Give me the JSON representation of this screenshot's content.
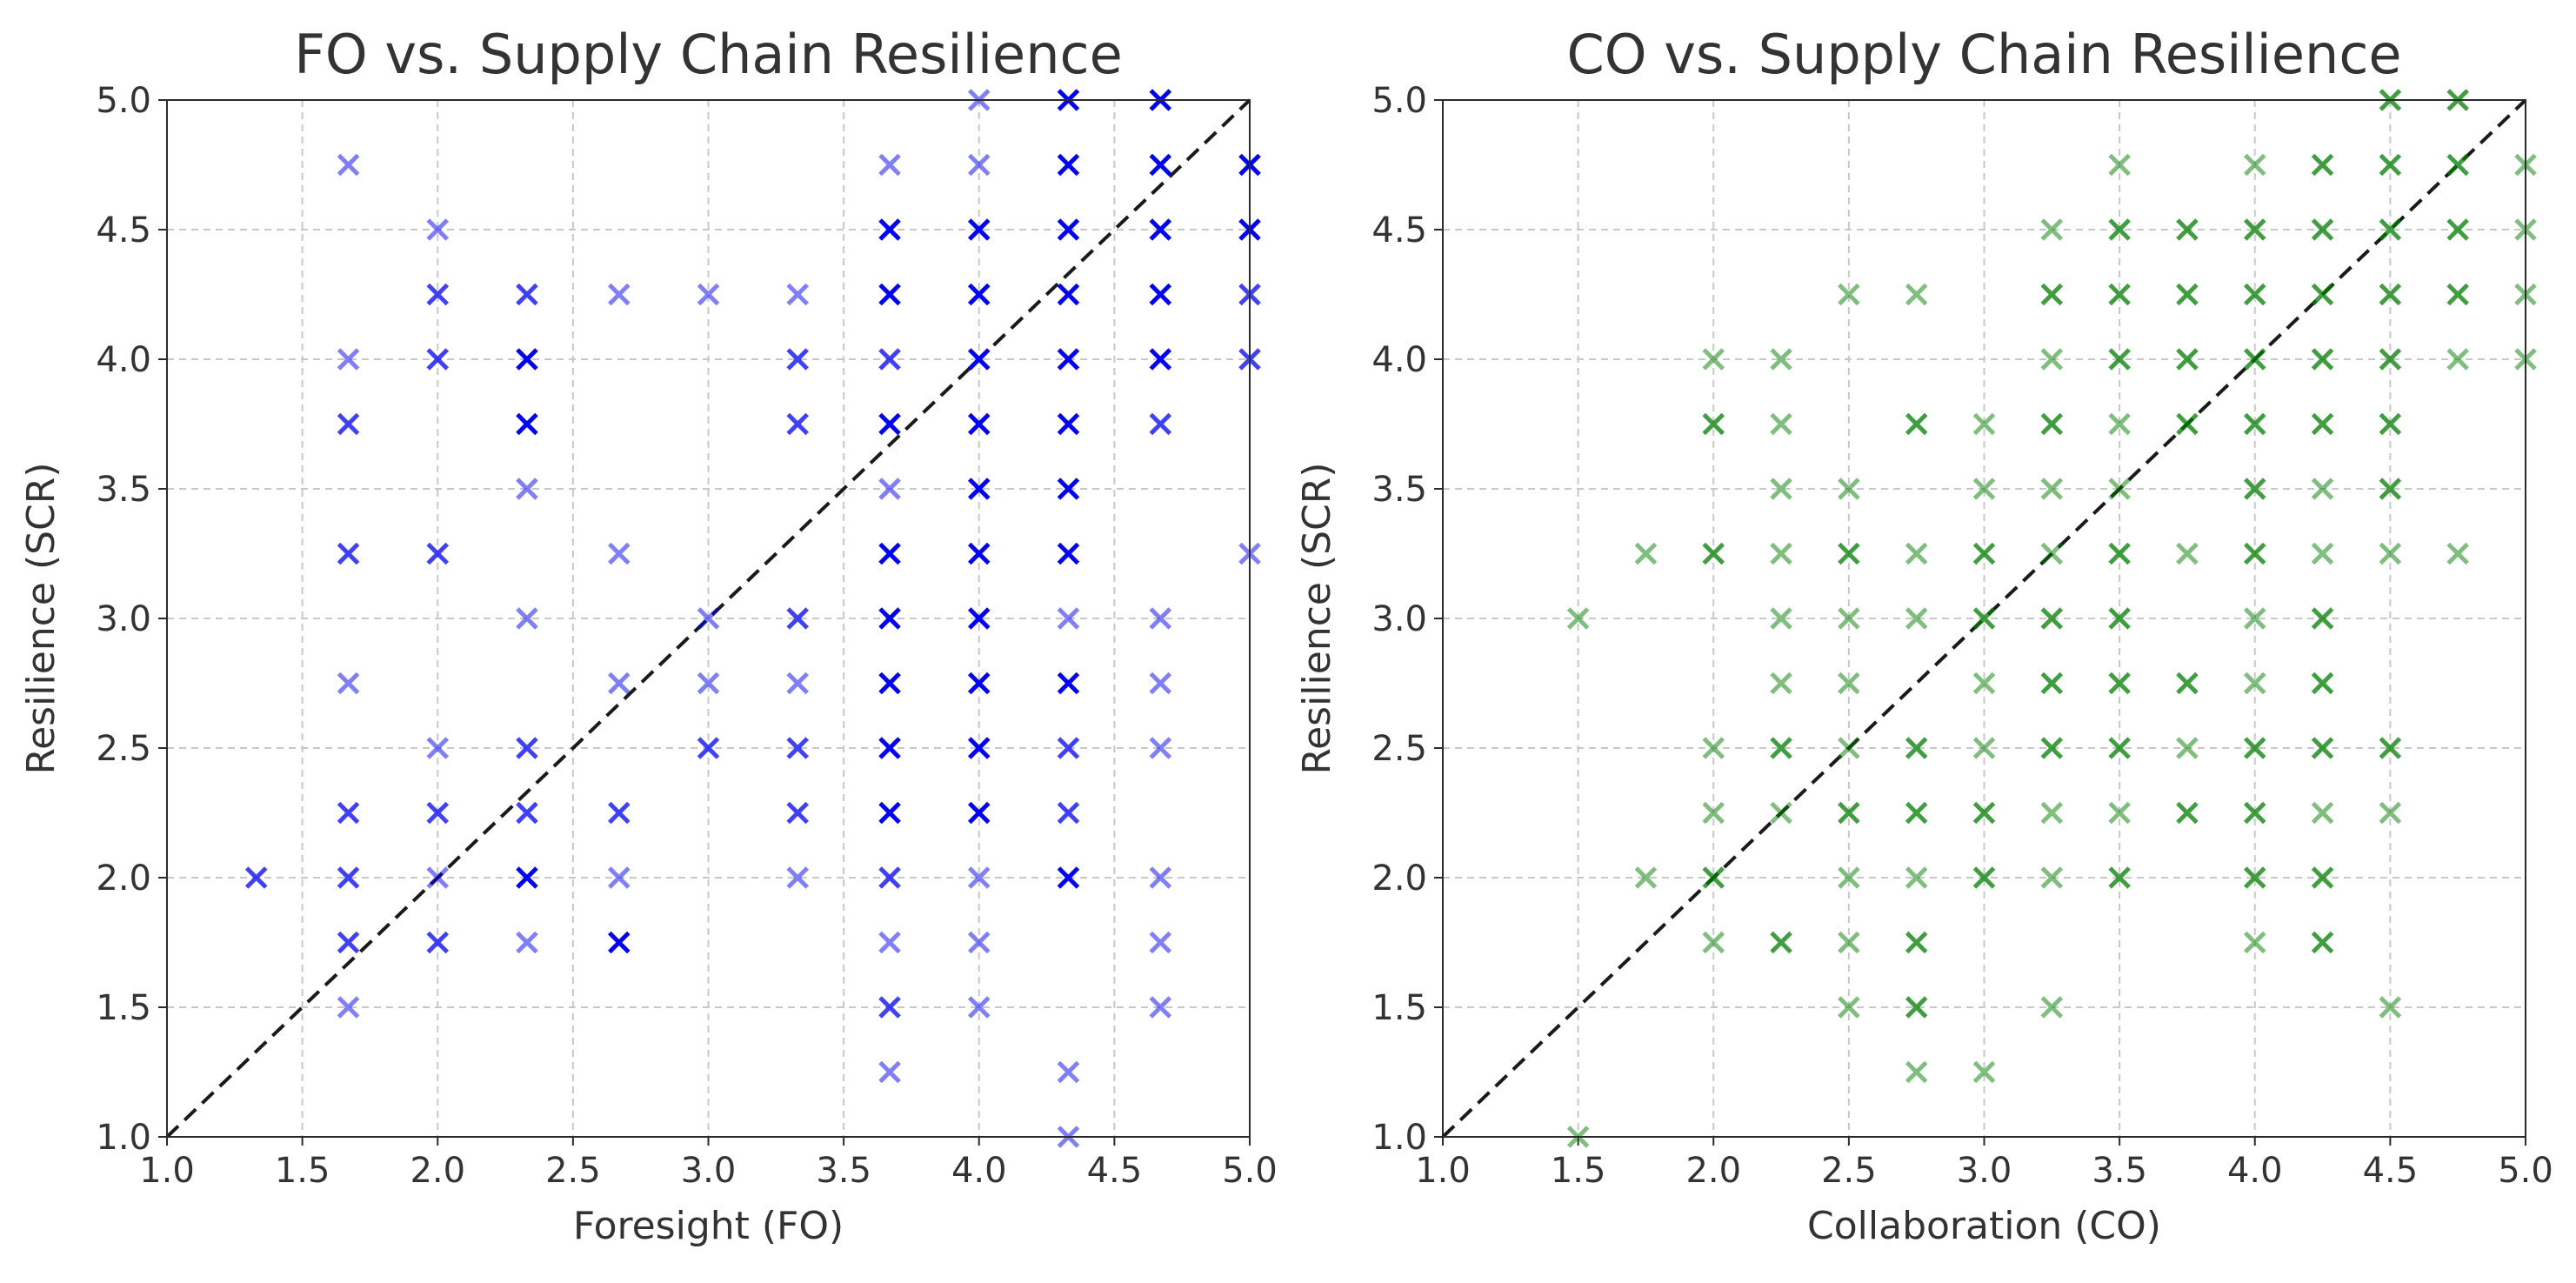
{
  "chart_data": [
    {
      "type": "scatter",
      "title": "FO vs. Supply Chain Resilience",
      "xlabel": "Foresight (FO)",
      "ylabel": "Resilience (SCR)",
      "xlim": [
        1.0,
        5.0
      ],
      "ylim": [
        1.0,
        5.0
      ],
      "xticks": [
        "1.0",
        "1.5",
        "2.0",
        "2.5",
        "3.0",
        "3.5",
        "4.0",
        "4.5",
        "5.0"
      ],
      "yticks": [
        "1.0",
        "1.5",
        "2.0",
        "2.5",
        "3.0",
        "3.5",
        "4.0",
        "4.5",
        "5.0"
      ],
      "grid": true,
      "marker": "x",
      "color": "#0000ff",
      "reference_line": [
        [
          1.0,
          1.0
        ],
        [
          5.0,
          5.0
        ]
      ],
      "points": [
        [
          1.33,
          2.0,
          2
        ],
        [
          1.67,
          4.75,
          1
        ],
        [
          1.67,
          4.0,
          1
        ],
        [
          1.67,
          3.75,
          2
        ],
        [
          1.67,
          3.25,
          2
        ],
        [
          1.67,
          2.75,
          1
        ],
        [
          1.67,
          2.25,
          2
        ],
        [
          1.67,
          2.0,
          2
        ],
        [
          1.67,
          1.75,
          2
        ],
        [
          1.67,
          1.5,
          1
        ],
        [
          2.0,
          4.5,
          1
        ],
        [
          2.0,
          4.25,
          2
        ],
        [
          2.0,
          4.0,
          2
        ],
        [
          2.0,
          3.25,
          2
        ],
        [
          2.0,
          2.5,
          1
        ],
        [
          2.0,
          2.25,
          2
        ],
        [
          2.0,
          2.0,
          1
        ],
        [
          2.0,
          1.75,
          2
        ],
        [
          2.33,
          4.25,
          2
        ],
        [
          2.33,
          4.0,
          3
        ],
        [
          2.33,
          3.75,
          3
        ],
        [
          2.33,
          3.5,
          1
        ],
        [
          2.33,
          3.0,
          1
        ],
        [
          2.33,
          2.5,
          2
        ],
        [
          2.33,
          2.25,
          2
        ],
        [
          2.33,
          2.0,
          3
        ],
        [
          2.33,
          1.75,
          1
        ],
        [
          2.67,
          4.25,
          1
        ],
        [
          2.67,
          3.25,
          1
        ],
        [
          2.67,
          2.75,
          1
        ],
        [
          2.67,
          2.25,
          2
        ],
        [
          2.67,
          2.0,
          1
        ],
        [
          2.67,
          1.75,
          3
        ],
        [
          3.0,
          4.25,
          1
        ],
        [
          3.0,
          3.0,
          1
        ],
        [
          3.0,
          2.75,
          1
        ],
        [
          3.0,
          2.5,
          2
        ],
        [
          3.33,
          4.25,
          1
        ],
        [
          3.33,
          4.0,
          2
        ],
        [
          3.33,
          3.75,
          2
        ],
        [
          3.33,
          3.0,
          2
        ],
        [
          3.33,
          2.75,
          1
        ],
        [
          3.33,
          2.5,
          2
        ],
        [
          3.33,
          2.25,
          2
        ],
        [
          3.33,
          2.0,
          1
        ],
        [
          3.67,
          4.75,
          1
        ],
        [
          3.67,
          4.5,
          3
        ],
        [
          3.67,
          4.25,
          3
        ],
        [
          3.67,
          4.0,
          2
        ],
        [
          3.67,
          3.75,
          3
        ],
        [
          3.67,
          3.5,
          1
        ],
        [
          3.67,
          3.25,
          3
        ],
        [
          3.67,
          3.0,
          3
        ],
        [
          3.67,
          2.75,
          3
        ],
        [
          3.67,
          2.5,
          3
        ],
        [
          3.67,
          2.25,
          3
        ],
        [
          3.67,
          2.0,
          2
        ],
        [
          3.67,
          1.75,
          1
        ],
        [
          3.67,
          1.5,
          2
        ],
        [
          3.67,
          1.25,
          1
        ],
        [
          4.0,
          5.0,
          1
        ],
        [
          4.0,
          4.75,
          1
        ],
        [
          4.0,
          4.5,
          3
        ],
        [
          4.0,
          4.25,
          3
        ],
        [
          4.0,
          4.0,
          3
        ],
        [
          4.0,
          3.75,
          3
        ],
        [
          4.0,
          3.5,
          3
        ],
        [
          4.0,
          3.25,
          3
        ],
        [
          4.0,
          3.0,
          3
        ],
        [
          4.0,
          2.75,
          3
        ],
        [
          4.0,
          2.5,
          3
        ],
        [
          4.0,
          2.25,
          3
        ],
        [
          4.0,
          2.0,
          1
        ],
        [
          4.0,
          1.75,
          1
        ],
        [
          4.0,
          1.5,
          1
        ],
        [
          4.33,
          5.0,
          3
        ],
        [
          4.33,
          4.75,
          3
        ],
        [
          4.33,
          4.5,
          3
        ],
        [
          4.33,
          4.25,
          3
        ],
        [
          4.33,
          4.0,
          3
        ],
        [
          4.33,
          3.75,
          3
        ],
        [
          4.33,
          3.5,
          3
        ],
        [
          4.33,
          3.25,
          3
        ],
        [
          4.33,
          3.0,
          1
        ],
        [
          4.33,
          2.75,
          3
        ],
        [
          4.33,
          2.5,
          2
        ],
        [
          4.33,
          2.25,
          2
        ],
        [
          4.33,
          2.0,
          3
        ],
        [
          4.33,
          1.25,
          1
        ],
        [
          4.33,
          1.0,
          1
        ],
        [
          4.67,
          5.0,
          3
        ],
        [
          4.67,
          4.75,
          3
        ],
        [
          4.67,
          4.5,
          3
        ],
        [
          4.67,
          4.25,
          3
        ],
        [
          4.67,
          4.0,
          3
        ],
        [
          4.67,
          3.75,
          2
        ],
        [
          4.67,
          3.0,
          1
        ],
        [
          4.67,
          2.75,
          1
        ],
        [
          4.67,
          2.5,
          1
        ],
        [
          4.67,
          2.0,
          1
        ],
        [
          4.67,
          1.75,
          1
        ],
        [
          4.67,
          1.5,
          1
        ],
        [
          5.0,
          4.75,
          3
        ],
        [
          5.0,
          4.5,
          3
        ],
        [
          5.0,
          4.25,
          2
        ],
        [
          5.0,
          4.0,
          2
        ],
        [
          5.0,
          3.25,
          1
        ]
      ]
    },
    {
      "type": "scatter",
      "title": "CO vs. Supply Chain Resilience",
      "xlabel": "Collaboration (CO)",
      "ylabel": "Resilience (SCR)",
      "xlim": [
        1.0,
        5.0
      ],
      "ylim": [
        1.0,
        5.0
      ],
      "xticks": [
        "1.0",
        "1.5",
        "2.0",
        "2.5",
        "3.0",
        "3.5",
        "4.0",
        "4.5",
        "5.0"
      ],
      "yticks": [
        "1.0",
        "1.5",
        "2.0",
        "2.5",
        "3.0",
        "3.5",
        "4.0",
        "4.5",
        "5.0"
      ],
      "grid": true,
      "marker": "x",
      "color": "#008000",
      "reference_line": [
        [
          1.0,
          1.0
        ],
        [
          5.0,
          5.0
        ]
      ],
      "points": [
        [
          1.5,
          3.0,
          1
        ],
        [
          1.5,
          1.0,
          1
        ],
        [
          1.75,
          3.25,
          1
        ],
        [
          1.75,
          2.0,
          1
        ],
        [
          2.0,
          4.0,
          1
        ],
        [
          2.0,
          3.75,
          2
        ],
        [
          2.0,
          3.25,
          2
        ],
        [
          2.0,
          2.5,
          1
        ],
        [
          2.0,
          2.25,
          1
        ],
        [
          2.0,
          2.0,
          2
        ],
        [
          2.0,
          1.75,
          1
        ],
        [
          2.25,
          4.0,
          1
        ],
        [
          2.25,
          3.75,
          1
        ],
        [
          2.25,
          3.5,
          1
        ],
        [
          2.25,
          3.25,
          1
        ],
        [
          2.25,
          3.0,
          1
        ],
        [
          2.25,
          2.75,
          1
        ],
        [
          2.25,
          2.5,
          2
        ],
        [
          2.25,
          2.25,
          1
        ],
        [
          2.25,
          1.75,
          2
        ],
        [
          2.5,
          4.25,
          1
        ],
        [
          2.5,
          3.5,
          1
        ],
        [
          2.5,
          3.25,
          2
        ],
        [
          2.5,
          3.0,
          1
        ],
        [
          2.5,
          2.75,
          1
        ],
        [
          2.5,
          2.5,
          1
        ],
        [
          2.5,
          2.25,
          2
        ],
        [
          2.5,
          2.0,
          1
        ],
        [
          2.5,
          1.75,
          1
        ],
        [
          2.5,
          1.5,
          1
        ],
        [
          2.75,
          4.25,
          1
        ],
        [
          2.75,
          3.75,
          2
        ],
        [
          2.75,
          3.25,
          1
        ],
        [
          2.75,
          3.0,
          1
        ],
        [
          2.75,
          2.5,
          2
        ],
        [
          2.75,
          2.25,
          2
        ],
        [
          2.75,
          2.0,
          1
        ],
        [
          2.75,
          1.75,
          2
        ],
        [
          2.75,
          1.5,
          2
        ],
        [
          2.75,
          1.25,
          1
        ],
        [
          3.0,
          3.75,
          1
        ],
        [
          3.0,
          3.5,
          1
        ],
        [
          3.0,
          3.25,
          2
        ],
        [
          3.0,
          3.0,
          2
        ],
        [
          3.0,
          2.75,
          1
        ],
        [
          3.0,
          2.5,
          1
        ],
        [
          3.0,
          2.25,
          2
        ],
        [
          3.0,
          2.0,
          2
        ],
        [
          3.0,
          1.25,
          1
        ],
        [
          3.25,
          4.5,
          1
        ],
        [
          3.25,
          4.25,
          2
        ],
        [
          3.25,
          4.0,
          1
        ],
        [
          3.25,
          3.75,
          2
        ],
        [
          3.25,
          3.5,
          1
        ],
        [
          3.25,
          3.25,
          1
        ],
        [
          3.25,
          3.0,
          2
        ],
        [
          3.25,
          2.75,
          2
        ],
        [
          3.25,
          2.5,
          2
        ],
        [
          3.25,
          2.25,
          1
        ],
        [
          3.25,
          2.0,
          1
        ],
        [
          3.25,
          1.5,
          1
        ],
        [
          3.5,
          4.75,
          1
        ],
        [
          3.5,
          4.5,
          2
        ],
        [
          3.5,
          4.25,
          2
        ],
        [
          3.5,
          4.0,
          2
        ],
        [
          3.5,
          3.75,
          1
        ],
        [
          3.5,
          3.5,
          1
        ],
        [
          3.5,
          3.25,
          2
        ],
        [
          3.5,
          3.0,
          2
        ],
        [
          3.5,
          2.75,
          2
        ],
        [
          3.5,
          2.5,
          2
        ],
        [
          3.5,
          2.25,
          1
        ],
        [
          3.5,
          2.0,
          2
        ],
        [
          3.75,
          4.5,
          2
        ],
        [
          3.75,
          4.25,
          2
        ],
        [
          3.75,
          4.0,
          2
        ],
        [
          3.75,
          3.75,
          2
        ],
        [
          3.75,
          3.25,
          1
        ],
        [
          3.75,
          2.75,
          2
        ],
        [
          3.75,
          2.5,
          1
        ],
        [
          3.75,
          2.25,
          2
        ],
        [
          4.0,
          4.75,
          1
        ],
        [
          4.0,
          4.5,
          2
        ],
        [
          4.0,
          4.25,
          2
        ],
        [
          4.0,
          4.0,
          2
        ],
        [
          4.0,
          3.75,
          2
        ],
        [
          4.0,
          3.5,
          2
        ],
        [
          4.0,
          3.25,
          2
        ],
        [
          4.0,
          3.0,
          1
        ],
        [
          4.0,
          2.75,
          1
        ],
        [
          4.0,
          2.5,
          2
        ],
        [
          4.0,
          2.25,
          2
        ],
        [
          4.0,
          2.0,
          2
        ],
        [
          4.0,
          1.75,
          1
        ],
        [
          4.25,
          4.75,
          2
        ],
        [
          4.25,
          4.5,
          2
        ],
        [
          4.25,
          4.25,
          2
        ],
        [
          4.25,
          4.0,
          2
        ],
        [
          4.25,
          3.75,
          2
        ],
        [
          4.25,
          3.5,
          1
        ],
        [
          4.25,
          3.25,
          1
        ],
        [
          4.25,
          3.0,
          2
        ],
        [
          4.25,
          2.75,
          2
        ],
        [
          4.25,
          2.5,
          2
        ],
        [
          4.25,
          2.25,
          1
        ],
        [
          4.25,
          2.0,
          2
        ],
        [
          4.25,
          1.75,
          2
        ],
        [
          4.5,
          5.0,
          2
        ],
        [
          4.5,
          4.75,
          2
        ],
        [
          4.5,
          4.5,
          2
        ],
        [
          4.5,
          4.25,
          2
        ],
        [
          4.5,
          4.0,
          2
        ],
        [
          4.5,
          3.75,
          2
        ],
        [
          4.5,
          3.5,
          2
        ],
        [
          4.5,
          3.25,
          1
        ],
        [
          4.5,
          2.5,
          2
        ],
        [
          4.5,
          2.25,
          1
        ],
        [
          4.5,
          1.5,
          1
        ],
        [
          4.75,
          5.0,
          2
        ],
        [
          4.75,
          4.75,
          2
        ],
        [
          4.75,
          4.5,
          2
        ],
        [
          4.75,
          4.25,
          2
        ],
        [
          4.75,
          4.0,
          1
        ],
        [
          4.75,
          3.25,
          1
        ],
        [
          5.0,
          4.75,
          1
        ],
        [
          5.0,
          4.5,
          1
        ],
        [
          5.0,
          4.25,
          1
        ],
        [
          5.0,
          4.0,
          1
        ]
      ]
    }
  ]
}
